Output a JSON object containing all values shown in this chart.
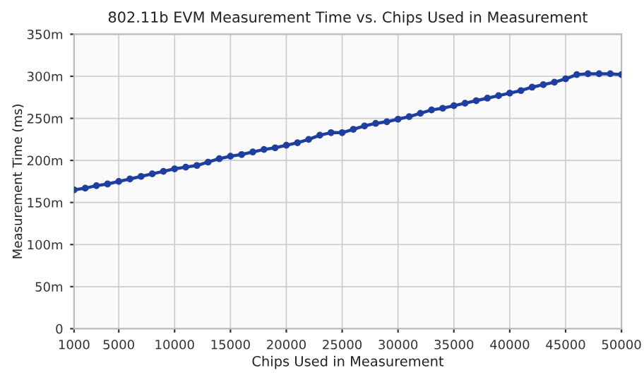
{
  "chart_data": {
    "type": "line",
    "title": "802.11b EVM Measurement Time vs. Chips Used in Measurement",
    "xlabel": "Chips Used in Measurement",
    "ylabel": "Measurement Time (ms)",
    "x": [
      1000,
      2000,
      3000,
      4000,
      5000,
      6000,
      7000,
      8000,
      9000,
      10000,
      11000,
      12000,
      13000,
      14000,
      15000,
      16000,
      17000,
      18000,
      19000,
      20000,
      21000,
      22000,
      23000,
      24000,
      25000,
      26000,
      27000,
      28000,
      29000,
      30000,
      31000,
      32000,
      33000,
      34000,
      35000,
      36000,
      37000,
      38000,
      39000,
      40000,
      41000,
      42000,
      43000,
      44000,
      45000,
      46000,
      47000,
      48000,
      49000,
      50000
    ],
    "series": [
      {
        "color": "#1f3fa0",
        "values": [
          165,
          167,
          170,
          172,
          175,
          178,
          181,
          184,
          187,
          190,
          192,
          194,
          198,
          202,
          205,
          207,
          210,
          213,
          215,
          218,
          221,
          225,
          230,
          233,
          233,
          237,
          241,
          244,
          246,
          249,
          252,
          256,
          260,
          262,
          265,
          268,
          271,
          274,
          277,
          280,
          283,
          287,
          290,
          293,
          297,
          302,
          303,
          303,
          303,
          302
        ]
      }
    ],
    "xlim": [
      1000,
      50000
    ],
    "xticks": [
      1000,
      5000,
      10000,
      15000,
      20000,
      25000,
      30000,
      35000,
      40000,
      45000,
      50000
    ],
    "ylim": [
      0,
      350
    ],
    "yticks": [
      0,
      {
        "value": 50,
        "label": "50m"
      },
      {
        "value": 100,
        "label": "100m"
      },
      {
        "value": 150,
        "label": "150m"
      },
      {
        "value": 200,
        "label": "200m"
      },
      {
        "value": 250,
        "label": "250m"
      },
      {
        "value": 300,
        "label": "300m"
      },
      {
        "value": 350,
        "label": "350m"
      }
    ],
    "grid": true,
    "marker": "circle",
    "line_style": "solid"
  }
}
